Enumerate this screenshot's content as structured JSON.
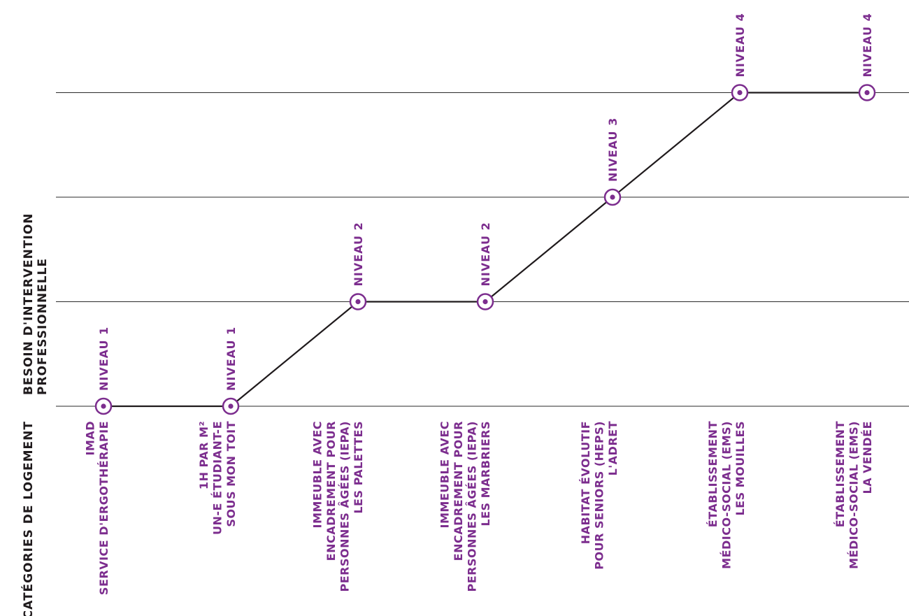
{
  "colors": {
    "accent": "#7c2d8e",
    "text": "#1f1a1c",
    "grid": "#2a2a2a"
  },
  "chart_data": {
    "type": "line",
    "orientation": "rotated-90",
    "xlabel": "CATÉGORIES DE LOGEMENT",
    "ylabel": [
      "BESOIN D'INTERVENTION",
      "PROFESSIONNELLE"
    ],
    "ylim": [
      1,
      4
    ],
    "grid": true,
    "categories": [
      [
        "IMAD",
        "SERVICE D'ERGOTHÉRAPIE"
      ],
      [
        "1H PAR M²",
        "UN-E ÉTUDIANT-E",
        "SOUS MON TOIT"
      ],
      [
        "IMMEUBLE AVEC",
        "ENCADREMENT POUR",
        "PERSONNES ÂGÉES (IEPA)",
        "LES PALETTES"
      ],
      [
        "IMMEUBLE AVEC",
        "ENCADREMENT POUR",
        "PERSONNES ÂGÉES (IEPA)",
        "LES MARBRIERS"
      ],
      [
        "HABITAT ÉVOLUTIF",
        "POUR SENIORS (HEPS)",
        "L'ADRET"
      ],
      [
        "ÉTABLISSEMENT",
        "MÉDICO-SOCIAL (EMS)",
        "LES MOUILLES"
      ],
      [
        "ÉTABLISSEMENT",
        "MÉDICO-SOCIAL (EMS)",
        "LA VENDÉE"
      ]
    ],
    "values": [
      1,
      1,
      2,
      2,
      3,
      4,
      4
    ],
    "point_labels": [
      "NIVEAU 1",
      "NIVEAU 1",
      "NIVEAU 2",
      "NIVEAU 2",
      "NIVEAU 3",
      "NIVEAU 4",
      "NIVEAU 4"
    ]
  }
}
